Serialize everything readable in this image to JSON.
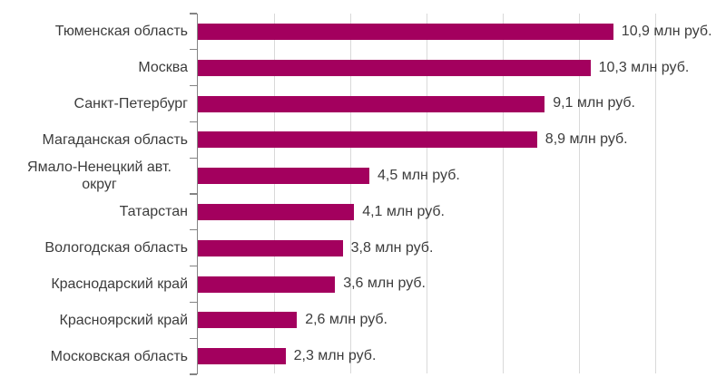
{
  "chart_data": {
    "type": "bar",
    "orientation": "horizontal",
    "title": "",
    "xlabel": "",
    "ylabel": "",
    "unit": "млн руб.",
    "categories": [
      "Тюменская область",
      "Москва",
      "Санкт-Петербург",
      "Магаданская область",
      "Ямало-Ненецкий авт. округ",
      "Татарстан",
      "Вологодская область",
      "Краснодарский край",
      "Красноярский край",
      "Московская область"
    ],
    "values": [
      10.9,
      10.3,
      9.1,
      8.9,
      4.5,
      4.1,
      3.8,
      3.6,
      2.6,
      2.3
    ],
    "value_labels": [
      "10,9 млн руб.",
      "10,3 млн руб.",
      "9,1 млн руб.",
      "8,9 млн руб.",
      "4,5 млн руб.",
      "4,1 млн руб.",
      "3,8 млн руб.",
      "3,6 млн руб.",
      "2,6 млн руб.",
      "2,3 млн руб."
    ],
    "xlim": [
      0,
      12
    ],
    "gridline_step": 2,
    "grid": true,
    "legend": false,
    "colors": {
      "bar": "#a3005e",
      "gridline": "#d9d9d9",
      "axis": "#848484",
      "text": "#3c3c3c",
      "background": "#ffffff"
    }
  }
}
